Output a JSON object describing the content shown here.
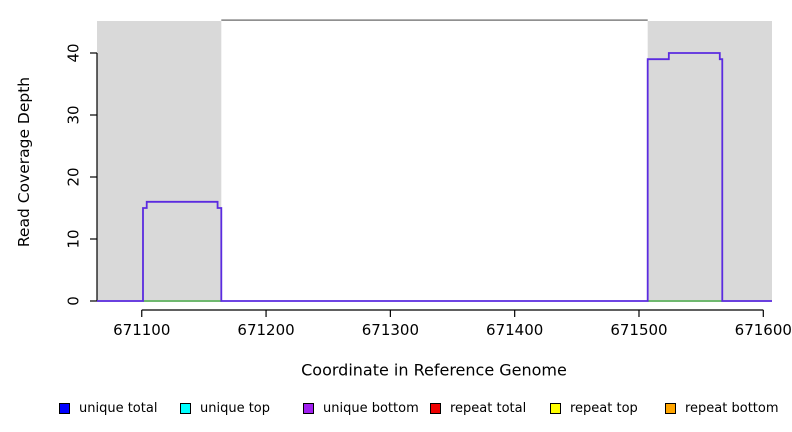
{
  "chart_data": {
    "type": "line",
    "title": "",
    "xlabel": "Coordinate in Reference Genome",
    "ylabel": "Read Coverage Depth",
    "xlim": [
      671064,
      671607
    ],
    "ylim": [
      0,
      45.3
    ],
    "x_ticks": [
      671100,
      671200,
      671300,
      671400,
      671500,
      671600
    ],
    "y_ticks": [
      0,
      10,
      20,
      30,
      40
    ],
    "grid": false,
    "axis_color": "#000000",
    "masked_regions": {
      "color": "#d9d9d9",
      "regions": [
        [
          671064,
          671164
        ],
        [
          671507,
          671607
        ]
      ]
    },
    "frame_top_segment": {
      "x": [
        671164,
        671507
      ],
      "y": 45.3,
      "color": "#808080"
    },
    "series": [
      {
        "name": "coverage-baseline-green",
        "color": "#4cae4c",
        "width": 1.5,
        "segments": [
          [
            [
              671101,
              0
            ],
            [
              671164,
              0
            ]
          ],
          [
            [
              671507,
              0
            ],
            [
              671567,
              0
            ]
          ]
        ]
      },
      {
        "name": "unique-bottom-coverage",
        "color": "#5b2be0",
        "width": 1.8,
        "segments": [
          [
            [
              671064,
              0
            ],
            [
              671101,
              0
            ],
            [
              671101,
              15
            ],
            [
              671104,
              15
            ],
            [
              671104,
              16
            ],
            [
              671161,
              16
            ],
            [
              671161,
              15
            ],
            [
              671164,
              15
            ],
            [
              671164,
              0
            ],
            [
              671507,
              0
            ],
            [
              671507,
              39
            ],
            [
              671524,
              39
            ],
            [
              671524,
              40
            ],
            [
              671565,
              40
            ],
            [
              671565,
              39
            ],
            [
              671567,
              39
            ],
            [
              671567,
              0
            ],
            [
              671607,
              0
            ]
          ]
        ]
      }
    ],
    "legend": {
      "position": "bottom",
      "entries": [
        {
          "label": "unique total",
          "color": "#0000ff"
        },
        {
          "label": "unique top",
          "color": "#00ffff"
        },
        {
          "label": "unique bottom",
          "color": "#a020f0"
        },
        {
          "label": "repeat total",
          "color": "#ee0000"
        },
        {
          "label": "repeat top",
          "color": "#ffff00"
        },
        {
          "label": "repeat bottom",
          "color": "#ffa500"
        }
      ]
    }
  }
}
